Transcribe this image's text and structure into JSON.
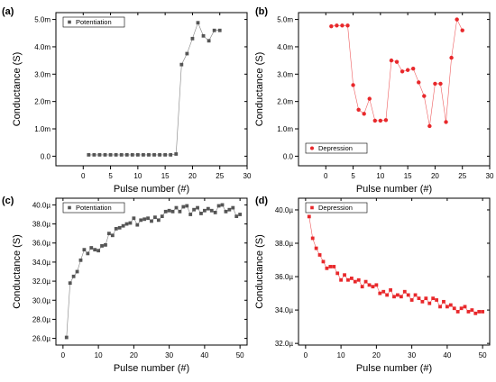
{
  "chart_data": [
    {
      "panel_label": "(a)",
      "type": "line",
      "xlabel": "Pulse number (#)",
      "ylabel": "Conductance (S)",
      "xlim": [
        -5,
        30
      ],
      "ylim": [
        -0.35,
        5.25
      ],
      "x_ticks": [
        0,
        5,
        10,
        15,
        20,
        25,
        30
      ],
      "y_ticks": [
        0,
        1,
        2,
        3,
        4,
        5
      ],
      "y_tick_labels": [
        "0.0",
        "1.0m",
        "2.0m",
        "3.0m",
        "4.0m",
        "5.0m"
      ],
      "legend_position": "top-left",
      "series": [
        {
          "name": "Potentiation",
          "color": "#555555",
          "marker": "square",
          "x": [
            1,
            2,
            3,
            4,
            5,
            6,
            7,
            8,
            9,
            10,
            11,
            12,
            13,
            14,
            15,
            16,
            17,
            18,
            19,
            20,
            21,
            22,
            23,
            24,
            25
          ],
          "y": [
            0.05,
            0.05,
            0.05,
            0.05,
            0.05,
            0.05,
            0.05,
            0.05,
            0.05,
            0.05,
            0.05,
            0.05,
            0.05,
            0.05,
            0.05,
            0.05,
            0.08,
            3.35,
            3.75,
            4.3,
            4.88,
            4.4,
            4.22,
            4.6,
            4.6
          ]
        }
      ]
    },
    {
      "panel_label": "(b)",
      "type": "line",
      "xlabel": "Pulse number (#)",
      "ylabel": "Conductance (S)",
      "xlim": [
        -5,
        30
      ],
      "ylim": [
        -0.35,
        5.25
      ],
      "x_ticks": [
        0,
        5,
        10,
        15,
        20,
        25,
        30
      ],
      "y_ticks": [
        0,
        1,
        2,
        3,
        4,
        5
      ],
      "y_tick_labels": [
        "0.0",
        "1.0m",
        "2.0m",
        "3.0m",
        "4.0m",
        "5.0m"
      ],
      "legend_position": "bottom-left",
      "series": [
        {
          "name": "Depression",
          "color": "#e8282b",
          "marker": "circle",
          "x": [
            1,
            2,
            3,
            4,
            5,
            6,
            7,
            8,
            9,
            10,
            11,
            12,
            13,
            14,
            15,
            16,
            17,
            18,
            19,
            20,
            21,
            22,
            23,
            24,
            25
          ],
          "y": [
            4.75,
            4.78,
            4.78,
            4.78,
            2.6,
            1.7,
            1.55,
            2.1,
            1.3,
            1.3,
            1.32,
            3.5,
            3.45,
            3.1,
            3.15,
            3.2,
            2.7,
            2.2,
            1.1,
            2.65,
            2.65,
            1.25,
            3.6,
            5.0,
            4.6
          ]
        }
      ]
    },
    {
      "panel_label": "(c)",
      "type": "line",
      "xlabel": "Pulse number (#)",
      "ylabel": "Conductance (S)",
      "xlim": [
        -2,
        52
      ],
      "ylim": [
        25.3,
        40.7
      ],
      "x_ticks": [
        0,
        10,
        20,
        30,
        40,
        50
      ],
      "y_ticks": [
        26,
        28,
        30,
        32,
        34,
        36,
        38,
        40
      ],
      "y_tick_labels": [
        "26.0µ",
        "28.0µ",
        "30.0µ",
        "32.0µ",
        "34.0µ",
        "36.0µ",
        "38.0µ",
        "40.0µ"
      ],
      "legend_position": "top-left",
      "series": [
        {
          "name": "Potentiation",
          "color": "#555555",
          "marker": "square",
          "x": [
            1,
            2,
            3,
            4,
            5,
            6,
            7,
            8,
            9,
            10,
            11,
            12,
            13,
            14,
            15,
            16,
            17,
            18,
            19,
            20,
            21,
            22,
            23,
            24,
            25,
            26,
            27,
            28,
            29,
            30,
            31,
            32,
            33,
            34,
            35,
            36,
            37,
            38,
            39,
            40,
            41,
            42,
            43,
            44,
            45,
            46,
            47,
            48,
            49,
            50
          ],
          "y": [
            26.1,
            31.8,
            32.5,
            33.0,
            34.2,
            35.3,
            34.9,
            35.5,
            35.3,
            35.2,
            35.7,
            35.8,
            37.0,
            36.8,
            37.5,
            37.6,
            37.8,
            38.0,
            38.1,
            38.6,
            37.9,
            38.4,
            38.5,
            38.6,
            38.3,
            38.7,
            38.4,
            38.8,
            39.3,
            39.4,
            39.3,
            39.7,
            39.3,
            39.8,
            39.9,
            39.0,
            39.5,
            39.7,
            39.1,
            39.4,
            39.6,
            39.4,
            39.2,
            39.9,
            40.0,
            39.3,
            39.5,
            39.7,
            38.8,
            39.0
          ]
        }
      ]
    },
    {
      "panel_label": "(d)",
      "type": "line",
      "xlabel": "Pulse number (#)",
      "ylabel": "Conductance (S)",
      "xlim": [
        -2,
        52
      ],
      "ylim": [
        31.9,
        40.7
      ],
      "x_ticks": [
        0,
        10,
        20,
        30,
        40,
        50
      ],
      "y_ticks": [
        32,
        34,
        36,
        38,
        40
      ],
      "y_tick_labels": [
        "32.0µ",
        "34.0µ",
        "36.0µ",
        "38.0µ",
        "40.0µ"
      ],
      "legend_position": "top-left",
      "series": [
        {
          "name": "Depression",
          "color": "#e8282b",
          "marker": "square",
          "x": [
            1,
            2,
            3,
            4,
            5,
            6,
            7,
            8,
            9,
            10,
            11,
            12,
            13,
            14,
            15,
            16,
            17,
            18,
            19,
            20,
            21,
            22,
            23,
            24,
            25,
            26,
            27,
            28,
            29,
            30,
            31,
            32,
            33,
            34,
            35,
            36,
            37,
            38,
            39,
            40,
            41,
            42,
            43,
            44,
            45,
            46,
            47,
            48,
            49,
            50
          ],
          "y": [
            39.6,
            38.3,
            37.7,
            37.3,
            36.9,
            36.5,
            36.6,
            36.6,
            36.2,
            35.8,
            36.1,
            35.8,
            35.9,
            35.7,
            35.8,
            35.4,
            35.7,
            35.5,
            35.4,
            35.5,
            35.0,
            35.1,
            34.9,
            35.2,
            34.8,
            34.9,
            34.8,
            35.1,
            34.9,
            34.6,
            34.9,
            34.7,
            34.5,
            34.7,
            34.4,
            34.7,
            34.6,
            34.2,
            34.5,
            34.2,
            34.3,
            34.1,
            33.9,
            34.1,
            34.2,
            33.9,
            34.0,
            33.8,
            33.9,
            33.9
          ]
        }
      ]
    }
  ]
}
